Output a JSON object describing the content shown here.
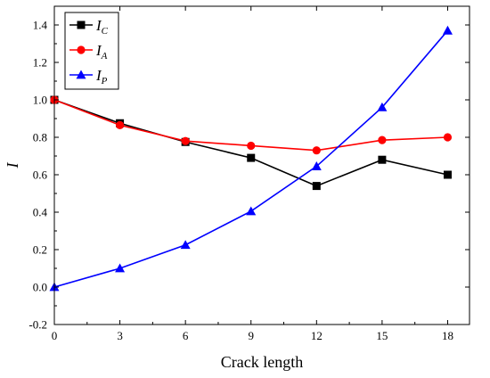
{
  "chart_data": {
    "type": "line",
    "xlabel": "Crack length",
    "ylabel": "I",
    "xlim": [
      0,
      19
    ],
    "ylim": [
      -0.2,
      1.5
    ],
    "x": [
      0,
      3,
      6,
      9,
      12,
      15,
      18
    ],
    "xticks": [
      "0",
      "3",
      "6",
      "9",
      "12",
      "15",
      "18"
    ],
    "yticks": [
      "-0.2",
      "0.0",
      "0.2",
      "0.4",
      "0.6",
      "0.8",
      "1.0",
      "1.2",
      "1.4"
    ],
    "ytick_values": [
      -0.2,
      0.0,
      0.2,
      0.4,
      0.6,
      0.8,
      1.0,
      1.2,
      1.4
    ],
    "grid": false,
    "legend_position": "top-left",
    "series": [
      {
        "name": "I_C",
        "legend_main": "I",
        "legend_sub": "C",
        "color": "#000000",
        "marker": "square",
        "values": [
          1.0,
          0.875,
          0.775,
          0.69,
          0.54,
          0.68,
          0.6
        ]
      },
      {
        "name": "I_A",
        "legend_main": "I",
        "legend_sub": "A",
        "color": "#ff0000",
        "marker": "circle",
        "values": [
          1.0,
          0.865,
          0.78,
          0.755,
          0.73,
          0.785,
          0.8
        ]
      },
      {
        "name": "I_P",
        "legend_main": "I",
        "legend_sub": "P",
        "color": "#0000ff",
        "marker": "triangle",
        "values": [
          0.0,
          0.1,
          0.225,
          0.405,
          0.645,
          0.96,
          1.37
        ]
      }
    ]
  }
}
